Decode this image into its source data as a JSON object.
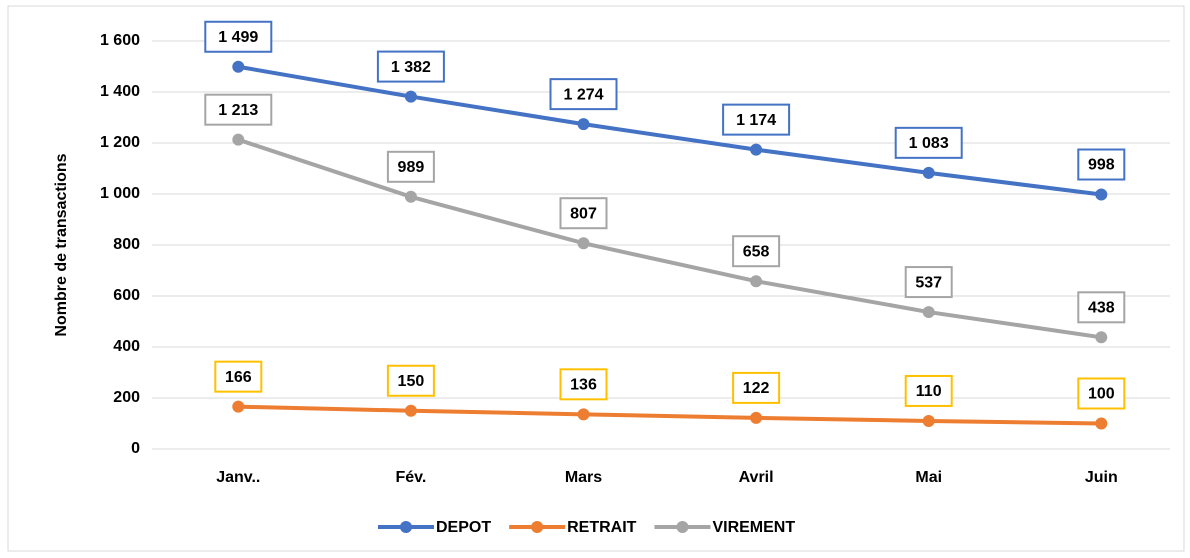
{
  "chart_data": {
    "type": "line",
    "y_label": "Nombre de transactions",
    "categories": [
      "Janv..",
      "Fév.",
      "Mars",
      "Avril",
      "Mai",
      "Juin"
    ],
    "series": [
      {
        "name": "DEPOT",
        "color": "#4472c4",
        "label_border": "#4472c4",
        "values": [
          1499,
          1382,
          1274,
          1174,
          1083,
          998
        ],
        "value_labels": [
          "1 499",
          "1 382",
          "1 274",
          "1 174",
          "1 083",
          "998"
        ]
      },
      {
        "name": "RETRAIT",
        "color": "#ed7d31",
        "label_border": "#ffc000",
        "values": [
          166,
          150,
          136,
          122,
          110,
          100
        ],
        "value_labels": [
          "166",
          "150",
          "136",
          "122",
          "110",
          "100"
        ]
      },
      {
        "name": "VIREMENT",
        "color": "#a5a5a5",
        "label_border": "#a5a5a5",
        "values": [
          1213,
          989,
          807,
          658,
          537,
          438
        ],
        "value_labels": [
          "1 213",
          "989",
          "807",
          "658",
          "537",
          "438"
        ]
      }
    ],
    "ylim": [
      0,
      1600
    ],
    "yticks": [
      0,
      200,
      400,
      600,
      800,
      {
        "value": 1000,
        "label": "1 000"
      },
      {
        "value": 1200,
        "label": "1 200"
      },
      {
        "value": 1400,
        "label": "1 400"
      },
      {
        "value": 1600,
        "label": "1 600"
      }
    ],
    "grid": true,
    "legend": "bottom"
  }
}
